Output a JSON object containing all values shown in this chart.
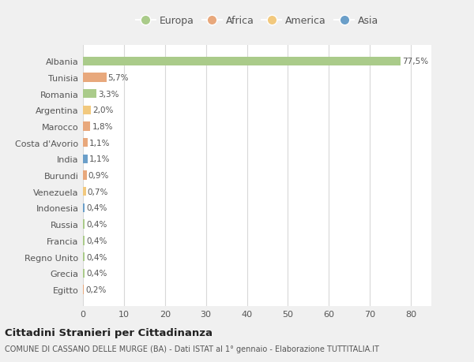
{
  "countries": [
    "Albania",
    "Tunisia",
    "Romania",
    "Argentina",
    "Marocco",
    "Costa d'Avorio",
    "India",
    "Burundi",
    "Venezuela",
    "Indonesia",
    "Russia",
    "Francia",
    "Regno Unito",
    "Grecia",
    "Egitto"
  ],
  "values": [
    77.5,
    5.7,
    3.3,
    2.0,
    1.8,
    1.1,
    1.1,
    0.9,
    0.7,
    0.4,
    0.4,
    0.4,
    0.4,
    0.4,
    0.2
  ],
  "labels": [
    "77,5%",
    "5,7%",
    "3,3%",
    "2,0%",
    "1,8%",
    "1,1%",
    "1,1%",
    "0,9%",
    "0,7%",
    "0,4%",
    "0,4%",
    "0,4%",
    "0,4%",
    "0,4%",
    "0,2%"
  ],
  "colors": [
    "#aacb8a",
    "#e8a87c",
    "#aacb8a",
    "#f2c97e",
    "#e8a87c",
    "#e8a87c",
    "#6b9fc9",
    "#e8a87c",
    "#f2c97e",
    "#6b9fc9",
    "#aacb8a",
    "#aacb8a",
    "#aacb8a",
    "#aacb8a",
    "#e8a87c"
  ],
  "legend_labels": [
    "Europa",
    "Africa",
    "America",
    "Asia"
  ],
  "legend_colors": [
    "#aacb8a",
    "#e8a87c",
    "#f2c97e",
    "#6b9fc9"
  ],
  "title": "Cittadini Stranieri per Cittadinanza",
  "subtitle": "COMUNE DI CASSANO DELLE MURGE (BA) - Dati ISTAT al 1° gennaio - Elaborazione TUTTITALIA.IT",
  "xlim": [
    0,
    85
  ],
  "xticks": [
    0,
    10,
    20,
    30,
    40,
    50,
    60,
    70,
    80
  ],
  "bg_color": "#f0f0f0",
  "plot_bg_color": "#ffffff",
  "grid_color": "#d8d8d8"
}
